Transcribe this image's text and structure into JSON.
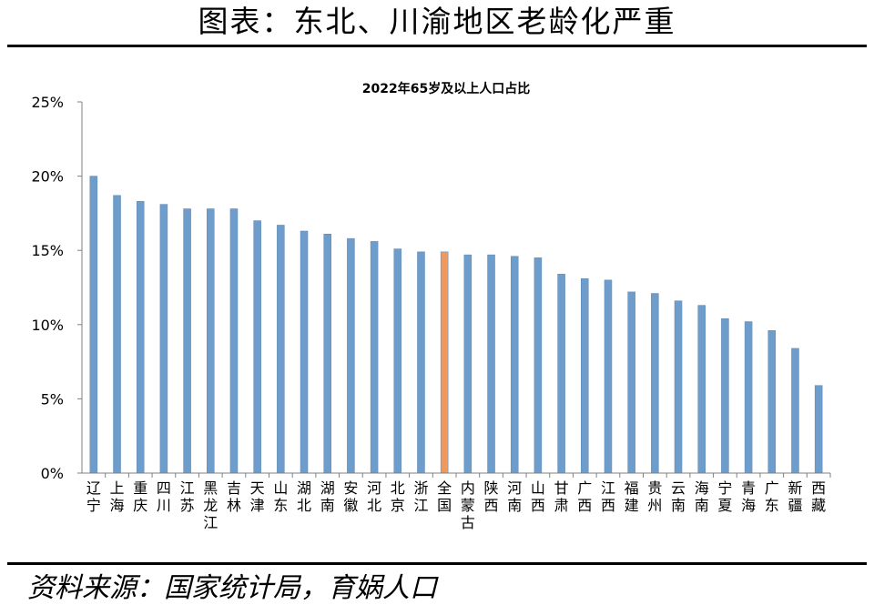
{
  "header": {
    "title": "图表：东北、川渝地区老龄化严重"
  },
  "footer": {
    "source": "资料来源：国家统计局，育娲人口"
  },
  "colors": {
    "bar": "#6f9dcb",
    "highlight": "#ef9a5c",
    "axis": "#808080",
    "text": "#000000"
  },
  "chart_data": {
    "type": "bar",
    "title": "2022年65岁及以上人口占比",
    "xlabel": "",
    "ylabel": "",
    "ylim": [
      0,
      25
    ],
    "yticks": [
      "0%",
      "5%",
      "10%",
      "15%",
      "20%",
      "25%"
    ],
    "ytick_values": [
      0,
      5,
      10,
      15,
      20,
      25
    ],
    "grid": false,
    "legend": "none",
    "highlight_category": "全国",
    "categories": [
      "辽宁",
      "上海",
      "重庆",
      "四川",
      "江苏",
      "黑龙江",
      "吉林",
      "天津",
      "山东",
      "湖北",
      "湖南",
      "安徽",
      "河北",
      "北京",
      "浙江",
      "全国",
      "内蒙古",
      "陕西",
      "河南",
      "山西",
      "甘肃",
      "广西",
      "江西",
      "福建",
      "贵州",
      "云南",
      "海南",
      "宁夏",
      "青海",
      "广东",
      "新疆",
      "西藏"
    ],
    "values": [
      20.0,
      18.7,
      18.3,
      18.1,
      17.8,
      17.8,
      17.8,
      17.0,
      16.7,
      16.3,
      16.1,
      15.8,
      15.6,
      15.1,
      14.9,
      14.9,
      14.7,
      14.7,
      14.6,
      14.5,
      13.4,
      13.1,
      13.0,
      12.2,
      12.1,
      11.6,
      11.3,
      10.4,
      10.2,
      9.6,
      8.4,
      5.9
    ]
  }
}
